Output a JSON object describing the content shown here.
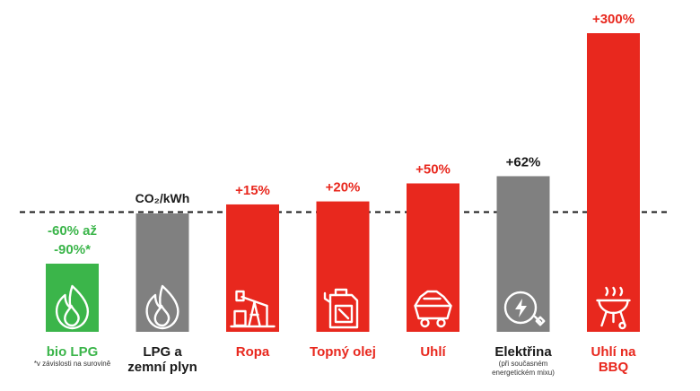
{
  "chart_data": {
    "type": "bar",
    "unit_label": "CO₂/kWh",
    "baseline_label_bar": 1,
    "categories": [
      {
        "name_lines": [
          "bio LPG"
        ],
        "value": -75,
        "value_label_lines": [
          "-60% až",
          "-90%*"
        ],
        "color": "#3bb54a",
        "label_color": "#3bb54a",
        "icon": "flame-icon",
        "note_lines": [
          "*v závislosti na surovině"
        ]
      },
      {
        "name_lines": [
          "LPG a",
          "zemní plyn"
        ],
        "value": 0,
        "value_label_lines": [],
        "color": "#808080",
        "label_color": "#1a1a1a",
        "icon": "flame-icon",
        "note_lines": []
      },
      {
        "name_lines": [
          "Ropa"
        ],
        "value": 15,
        "value_label_lines": [
          "+15%"
        ],
        "color": "#e8281e",
        "label_color": "#e8281e",
        "icon": "oil-pump-icon",
        "note_lines": []
      },
      {
        "name_lines": [
          "Topný olej"
        ],
        "value": 20,
        "value_label_lines": [
          "+20%"
        ],
        "color": "#e8281e",
        "label_color": "#e8281e",
        "icon": "jerrycan-icon",
        "note_lines": []
      },
      {
        "name_lines": [
          "Uhlí"
        ],
        "value": 50,
        "value_label_lines": [
          "+50%"
        ],
        "color": "#e8281e",
        "label_color": "#e8281e",
        "icon": "coal-cart-icon",
        "note_lines": []
      },
      {
        "name_lines": [
          "Elektřina"
        ],
        "value": 62,
        "value_label_lines": [
          "+62%"
        ],
        "color": "#808080",
        "label_color": "#1a1a1a",
        "icon": "electric-plug-icon",
        "note_lines": [
          "(při současném",
          "energetickém mixu)"
        ]
      },
      {
        "name_lines": [
          "Uhlí na",
          "BBQ"
        ],
        "value": 300,
        "value_label_lines": [
          "+300%"
        ],
        "color": "#e8281e",
        "label_color": "#e8281e",
        "icon": "bbq-grill-icon",
        "note_lines": []
      }
    ]
  }
}
